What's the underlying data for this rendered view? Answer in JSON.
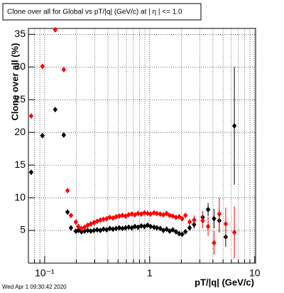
{
  "chart_data": {
    "type": "scatter",
    "title": "Clone  over all for Global vs pT/|q| (GeV/c) at |  η | <= 1.0",
    "x_label": "pT/|q| (GeV/c)",
    "y_label": "Clone  over all (%)",
    "footer": "Wed Apr  1 09:30:42 2020",
    "x_log": true,
    "grid": true,
    "xlim": [
      0.07,
      10.2
    ],
    "ylim": [
      0,
      35.9
    ],
    "xticks": [
      {
        "value": 0.1,
        "label": "10⁻¹"
      },
      1,
      10
    ],
    "xminorticks": [
      0.08,
      0.09,
      0.2,
      0.3,
      0.4,
      0.5,
      0.6,
      0.7,
      0.8,
      0.9,
      2,
      3,
      4,
      5,
      6,
      7,
      8,
      9
    ],
    "yticks": [
      5,
      10,
      15,
      20,
      25,
      30,
      35
    ],
    "x": [
      0.0744,
      0.0953,
      0.126,
      0.152,
      0.165,
      0.178,
      0.198,
      0.209,
      0.224,
      0.24,
      0.257,
      0.275,
      0.295,
      0.316,
      0.339,
      0.363,
      0.389,
      0.417,
      0.447,
      0.479,
      0.513,
      0.55,
      0.589,
      0.631,
      0.676,
      0.724,
      0.776,
      0.832,
      0.891,
      0.955,
      1.02,
      1.1,
      1.17,
      1.26,
      1.35,
      1.45,
      1.55,
      1.66,
      1.78,
      1.91,
      2.04,
      2.19,
      2.4,
      2.65,
      3.2,
      3.6,
      4.1,
      4.6,
      5.3,
      6.4
    ],
    "series": [
      {
        "color": "#000000",
        "values": [
          13.9,
          19.5,
          23.5,
          19.6,
          7.8,
          5.4,
          4.9,
          5.0,
          4.8,
          4.9,
          5.0,
          4.9,
          5.0,
          5.1,
          5.0,
          5.2,
          5.1,
          5.3,
          5.2,
          5.3,
          5.4,
          5.3,
          5.4,
          5.5,
          5.4,
          5.6,
          5.5,
          5.7,
          5.6,
          5.8,
          5.6,
          5.5,
          5.4,
          5.3,
          5.0,
          5.2,
          4.9,
          5.1,
          4.8,
          4.5,
          4.4,
          4.8,
          5.4,
          5.9,
          7.0,
          8.2,
          6.8,
          6.5,
          4.0,
          21.0
        ],
        "errors": [
          0.3,
          0.3,
          0.3,
          0.3,
          0.3,
          0.3,
          0.3,
          0.2,
          0.2,
          0.2,
          0.2,
          0.2,
          0.2,
          0.2,
          0.2,
          0.2,
          0.2,
          0.2,
          0.2,
          0.2,
          0.2,
          0.2,
          0.2,
          0.2,
          0.2,
          0.2,
          0.2,
          0.2,
          0.2,
          0.2,
          0.2,
          0.2,
          0.2,
          0.2,
          0.2,
          0.2,
          0.2,
          0.2,
          0.2,
          0.2,
          0.2,
          0.2,
          0.4,
          0.6,
          0.9,
          1.0,
          1.5,
          1.8,
          1.5,
          9.0
        ]
      },
      {
        "color": "#ff0000",
        "values": [
          22.5,
          30.1,
          35.7,
          29.6,
          11.1,
          7.3,
          6.3,
          5.6,
          5.3,
          5.5,
          5.8,
          6.0,
          6.2,
          6.4,
          6.6,
          6.7,
          6.8,
          7.0,
          6.9,
          7.1,
          7.2,
          7.3,
          7.2,
          7.4,
          7.5,
          7.4,
          7.6,
          7.5,
          7.7,
          7.6,
          7.5,
          7.7,
          7.6,
          7.5,
          7.4,
          7.6,
          7.3,
          7.2,
          7.0,
          7.1,
          6.8,
          7.3,
          6.3,
          6.6,
          6.5,
          5.6,
          3.1,
          7.5,
          6.0,
          4.7
        ],
        "errors": [
          0.3,
          0.3,
          0.3,
          0.3,
          0.3,
          0.3,
          0.3,
          0.2,
          0.2,
          0.2,
          0.2,
          0.2,
          0.2,
          0.2,
          0.2,
          0.2,
          0.2,
          0.2,
          0.2,
          0.2,
          0.2,
          0.2,
          0.2,
          0.2,
          0.2,
          0.2,
          0.2,
          0.2,
          0.2,
          0.2,
          0.2,
          0.2,
          0.2,
          0.2,
          0.2,
          0.2,
          0.2,
          0.2,
          0.2,
          0.2,
          0.2,
          0.2,
          0.5,
          0.7,
          1.2,
          1.5,
          1.8,
          2.5,
          2.5,
          4.0
        ]
      }
    ]
  }
}
